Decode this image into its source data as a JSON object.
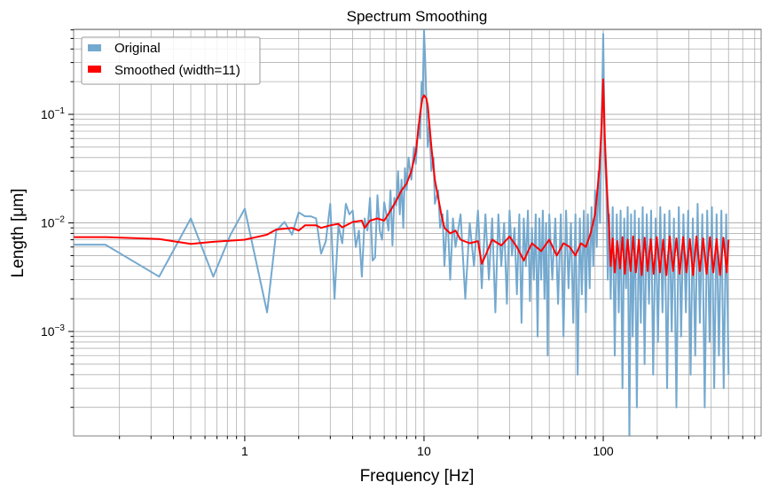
{
  "chart_data": {
    "type": "line",
    "title": "Spectrum Smoothing",
    "xlabel": "Frequency [Hz]",
    "ylabel": "Length [μm]",
    "xscale": "log",
    "yscale": "log",
    "xlim": [
      0.111,
      760
    ],
    "ylim": [
      0.000109,
      0.608
    ],
    "grid": "major and minor",
    "legend_position": "top-left",
    "x_ticks": [
      {
        "value": 1,
        "label": "1"
      },
      {
        "value": 10,
        "label": "10"
      },
      {
        "value": 100,
        "label": "100"
      }
    ],
    "y_ticks": [
      {
        "value": 0.1,
        "base": "10",
        "exp": "−1"
      },
      {
        "value": 0.01,
        "base": "10",
        "exp": "−2"
      },
      {
        "value": 0.001,
        "base": "10",
        "exp": "−3"
      }
    ],
    "series": [
      {
        "name": "Original",
        "color": "#74a9cf",
        "points": [
          [
            0.111,
            0.0063
          ],
          [
            0.167,
            0.0063
          ],
          [
            0.333,
            0.0032
          ],
          [
            0.5,
            0.011
          ],
          [
            0.667,
            0.0032
          ],
          [
            0.833,
            0.0078
          ],
          [
            1.0,
            0.0135
          ],
          [
            1.333,
            0.0015
          ],
          [
            1.5,
            0.0085
          ],
          [
            1.667,
            0.0102
          ],
          [
            1.833,
            0.0078
          ],
          [
            2.0,
            0.0125
          ],
          [
            2.167,
            0.0115
          ],
          [
            2.333,
            0.0115
          ],
          [
            2.5,
            0.011
          ],
          [
            2.667,
            0.0052
          ],
          [
            2.833,
            0.0068
          ],
          [
            3.0,
            0.015
          ],
          [
            3.167,
            0.002
          ],
          [
            3.333,
            0.0095
          ],
          [
            3.5,
            0.0065
          ],
          [
            3.667,
            0.015
          ],
          [
            3.833,
            0.012
          ],
          [
            4.0,
            0.013
          ],
          [
            4.167,
            0.006
          ],
          [
            4.333,
            0.0085
          ],
          [
            4.5,
            0.0032
          ],
          [
            4.667,
            0.011
          ],
          [
            4.833,
            0.0085
          ],
          [
            5.0,
            0.017
          ],
          [
            5.167,
            0.0045
          ],
          [
            5.333,
            0.0048
          ],
          [
            5.5,
            0.018
          ],
          [
            5.667,
            0.0085
          ],
          [
            5.833,
            0.007
          ],
          [
            6.0,
            0.0155
          ],
          [
            6.167,
            0.012
          ],
          [
            6.333,
            0.0085
          ],
          [
            6.5,
            0.02
          ],
          [
            6.667,
            0.0062
          ],
          [
            6.833,
            0.017
          ],
          [
            7.0,
            0.0145
          ],
          [
            7.167,
            0.03
          ],
          [
            7.333,
            0.012
          ],
          [
            7.5,
            0.025
          ],
          [
            7.667,
            0.009
          ],
          [
            7.833,
            0.032
          ],
          [
            8.0,
            0.02
          ],
          [
            8.2,
            0.04
          ],
          [
            8.5,
            0.025
          ],
          [
            8.8,
            0.05
          ],
          [
            9.0,
            0.035
          ],
          [
            9.3,
            0.08
          ],
          [
            9.5,
            0.06
          ],
          [
            9.7,
            0.2
          ],
          [
            9.83,
            0.15
          ],
          [
            10.0,
            0.6
          ],
          [
            10.17,
            0.3
          ],
          [
            10.33,
            0.12
          ],
          [
            10.5,
            0.05
          ],
          [
            10.7,
            0.08
          ],
          [
            11.0,
            0.03
          ],
          [
            11.3,
            0.04
          ],
          [
            11.5,
            0.015
          ],
          [
            12.0,
            0.02
          ],
          [
            12.3,
            0.009
          ],
          [
            12.7,
            0.012
          ],
          [
            13.0,
            0.004
          ],
          [
            13.5,
            0.013
          ],
          [
            14.0,
            0.003
          ],
          [
            14.5,
            0.011
          ],
          [
            15.0,
            0.006
          ],
          [
            16.0,
            0.012
          ],
          [
            17.0,
            0.002
          ],
          [
            18.0,
            0.01
          ],
          [
            19.0,
            0.004
          ],
          [
            20,
            0.013
          ],
          [
            21,
            0.0025
          ],
          [
            22,
            0.012
          ],
          [
            23,
            0.003
          ],
          [
            24,
            0.011
          ],
          [
            25,
            0.0015
          ],
          [
            26,
            0.012
          ],
          [
            27,
            0.004
          ],
          [
            28,
            0.01
          ],
          [
            29,
            0.0018
          ],
          [
            30,
            0.013
          ],
          [
            31,
            0.005
          ],
          [
            32,
            0.009
          ],
          [
            33,
            0.0022
          ],
          [
            34,
            0.012
          ],
          [
            35,
            0.0012
          ],
          [
            36,
            0.011
          ],
          [
            37,
            0.004
          ],
          [
            38,
            0.013
          ],
          [
            39,
            0.0019
          ],
          [
            40,
            0.009
          ],
          [
            41,
            0.003
          ],
          [
            42,
            0.012
          ],
          [
            43,
            0.0009
          ],
          [
            44,
            0.011
          ],
          [
            45,
            0.003
          ],
          [
            46,
            0.013
          ],
          [
            47,
            0.002
          ],
          [
            48,
            0.01
          ],
          [
            49,
            0.0006
          ],
          [
            50,
            0.012
          ],
          [
            52,
            0.003
          ],
          [
            54,
            0.011
          ],
          [
            56,
            0.0018
          ],
          [
            58,
            0.012
          ],
          [
            60,
            0.0009
          ],
          [
            62,
            0.013
          ],
          [
            64,
            0.0025
          ],
          [
            66,
            0.01
          ],
          [
            68,
            0.0012
          ],
          [
            70,
            0.012
          ],
          [
            72,
            0.0004
          ],
          [
            74,
            0.011
          ],
          [
            76,
            0.0022
          ],
          [
            78,
            0.013
          ],
          [
            80,
            0.0015
          ],
          [
            82,
            0.012
          ],
          [
            84,
            0.0025
          ],
          [
            86,
            0.014
          ],
          [
            88,
            0.004
          ],
          [
            90,
            0.02
          ],
          [
            92,
            0.006
          ],
          [
            94,
            0.03
          ],
          [
            96,
            0.01
          ],
          [
            98,
            0.1
          ],
          [
            99,
            0.2
          ],
          [
            100,
            0.55
          ],
          [
            101,
            0.15
          ],
          [
            102,
            0.04
          ],
          [
            104,
            0.02
          ],
          [
            106,
            0.003
          ],
          [
            108,
            0.012
          ],
          [
            110,
            0.002
          ],
          [
            113,
            0.014
          ],
          [
            116,
            0.0006
          ],
          [
            119,
            0.012
          ],
          [
            122,
            0.0015
          ],
          [
            125,
            0.013
          ],
          [
            128,
            0.0003
          ],
          [
            131,
            0.011
          ],
          [
            134,
            0.0025
          ],
          [
            137,
            0.014
          ],
          [
            140,
            0.0001
          ],
          [
            143,
            0.012
          ],
          [
            146,
            0.0009
          ],
          [
            150,
            0.013
          ],
          [
            154,
            0.0002
          ],
          [
            158,
            0.011
          ],
          [
            162,
            0.0012
          ],
          [
            166,
            0.014
          ],
          [
            170,
            0.0005
          ],
          [
            175,
            0.012
          ],
          [
            180,
            0.0018
          ],
          [
            185,
            0.013
          ],
          [
            190,
            0.0004
          ],
          [
            196,
            0.011
          ],
          [
            202,
            0.0008
          ],
          [
            208,
            0.014
          ],
          [
            214,
            0.0015
          ],
          [
            220,
            0.012
          ],
          [
            227,
            0.0003
          ],
          [
            234,
            0.013
          ],
          [
            241,
            0.001
          ],
          [
            248,
            0.011
          ],
          [
            256,
            0.0002
          ],
          [
            264,
            0.014
          ],
          [
            272,
            0.0009
          ],
          [
            280,
            0.012
          ],
          [
            289,
            0.0015
          ],
          [
            298,
            0.013
          ],
          [
            307,
            0.0004
          ],
          [
            316,
            0.011
          ],
          [
            326,
            0.0006
          ],
          [
            336,
            0.015
          ],
          [
            346,
            0.0012
          ],
          [
            357,
            0.012
          ],
          [
            368,
            0.0002
          ],
          [
            380,
            0.013
          ],
          [
            392,
            0.0008
          ],
          [
            404,
            0.014
          ],
          [
            416,
            0.0003
          ],
          [
            429,
            0.012
          ],
          [
            442,
            0.0006
          ],
          [
            456,
            0.013
          ],
          [
            470,
            0.0003
          ],
          [
            485,
            0.012
          ],
          [
            500,
            0.0004
          ]
        ]
      },
      {
        "name": "Smoothed (width=11)",
        "color": "#ff0000",
        "points": [
          [
            0.111,
            0.0074
          ],
          [
            0.167,
            0.0074
          ],
          [
            0.333,
            0.0071
          ],
          [
            0.5,
            0.0064
          ],
          [
            0.667,
            0.0067
          ],
          [
            1.0,
            0.007
          ],
          [
            1.333,
            0.0078
          ],
          [
            1.5,
            0.0087
          ],
          [
            1.833,
            0.009
          ],
          [
            2.0,
            0.0085
          ],
          [
            2.167,
            0.0095
          ],
          [
            2.5,
            0.0095
          ],
          [
            2.667,
            0.009
          ],
          [
            3.0,
            0.0095
          ],
          [
            3.333,
            0.0098
          ],
          [
            3.5,
            0.0091
          ],
          [
            4.0,
            0.0102
          ],
          [
            4.5,
            0.0105
          ],
          [
            4.667,
            0.009
          ],
          [
            5.0,
            0.0105
          ],
          [
            5.5,
            0.011
          ],
          [
            6.0,
            0.0105
          ],
          [
            6.5,
            0.013
          ],
          [
            7.0,
            0.016
          ],
          [
            7.5,
            0.02
          ],
          [
            8.0,
            0.023
          ],
          [
            8.5,
            0.03
          ],
          [
            9.0,
            0.045
          ],
          [
            9.5,
            0.1
          ],
          [
            9.8,
            0.14
          ],
          [
            10.0,
            0.15
          ],
          [
            10.3,
            0.14
          ],
          [
            10.5,
            0.12
          ],
          [
            11.0,
            0.05
          ],
          [
            11.5,
            0.025
          ],
          [
            12.0,
            0.017
          ],
          [
            12.5,
            0.012
          ],
          [
            13.0,
            0.009
          ],
          [
            14.0,
            0.008
          ],
          [
            15.0,
            0.0085
          ],
          [
            16.0,
            0.007
          ],
          [
            18.0,
            0.0065
          ],
          [
            20.0,
            0.0068
          ],
          [
            21.0,
            0.0042
          ],
          [
            22.0,
            0.005
          ],
          [
            24.0,
            0.007
          ],
          [
            27.0,
            0.0062
          ],
          [
            30.0,
            0.0075
          ],
          [
            33.0,
            0.006
          ],
          [
            36.0,
            0.0045
          ],
          [
            40.0,
            0.0065
          ],
          [
            45.0,
            0.0055
          ],
          [
            50.0,
            0.007
          ],
          [
            55.0,
            0.005
          ],
          [
            60.0,
            0.0065
          ],
          [
            65.0,
            0.006
          ],
          [
            70.0,
            0.005
          ],
          [
            75.0,
            0.0065
          ],
          [
            80.0,
            0.006
          ],
          [
            85.0,
            0.008
          ],
          [
            90.0,
            0.012
          ],
          [
            95.0,
            0.03
          ],
          [
            98.0,
            0.08
          ],
          [
            100.0,
            0.21
          ],
          [
            102.0,
            0.06
          ],
          [
            105.0,
            0.02
          ],
          [
            108.0,
            0.008
          ],
          [
            110,
            0.004
          ],
          [
            113,
            0.0072
          ],
          [
            116,
            0.0035
          ],
          [
            120,
            0.0068
          ],
          [
            124,
            0.0038
          ],
          [
            128,
            0.0074
          ],
          [
            132,
            0.0034
          ],
          [
            137,
            0.007
          ],
          [
            142,
            0.0036
          ],
          [
            147,
            0.0075
          ],
          [
            152,
            0.0035
          ],
          [
            158,
            0.007
          ],
          [
            164,
            0.0033
          ],
          [
            170,
            0.0073
          ],
          [
            177,
            0.0036
          ],
          [
            184,
            0.0071
          ],
          [
            191,
            0.0034
          ],
          [
            199,
            0.0074
          ],
          [
            207,
            0.0035
          ],
          [
            216,
            0.007
          ],
          [
            225,
            0.0033
          ],
          [
            235,
            0.0075
          ],
          [
            245,
            0.0036
          ],
          [
            256,
            0.0072
          ],
          [
            267,
            0.0034
          ],
          [
            279,
            0.0074
          ],
          [
            291,
            0.0035
          ],
          [
            304,
            0.0071
          ],
          [
            317,
            0.0033
          ],
          [
            331,
            0.0075
          ],
          [
            346,
            0.0036
          ],
          [
            361,
            0.0072
          ],
          [
            377,
            0.0034
          ],
          [
            394,
            0.0074
          ],
          [
            411,
            0.0035
          ],
          [
            429,
            0.0071
          ],
          [
            448,
            0.0033
          ],
          [
            468,
            0.0073
          ],
          [
            489,
            0.0035
          ],
          [
            500,
            0.007
          ]
        ]
      }
    ]
  }
}
